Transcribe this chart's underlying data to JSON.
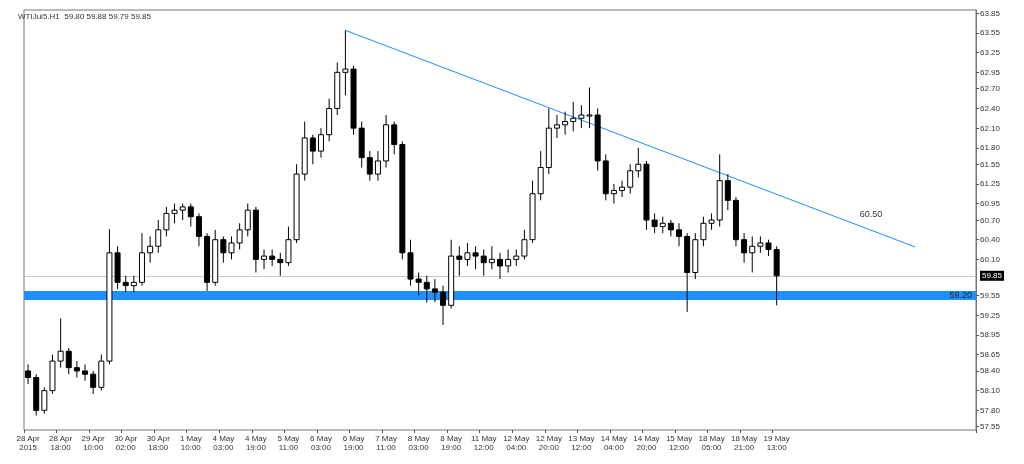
{
  "chart_data": {
    "type": "candlestick",
    "title": "WTIJul5.H1  59.80 59.88 59.79 59.85",
    "color": "#000000",
    "categories": [
      "28 Apr 2015",
      null,
      null,
      null,
      "28 Apr 18:00",
      null,
      null,
      null,
      "29 Apr 10:00",
      null,
      null,
      null,
      "30 Apr 02:00",
      null,
      null,
      null,
      "30 Apr 18:00",
      null,
      null,
      null,
      "1 May 10:00",
      null,
      null,
      null,
      "4 May 03:00",
      null,
      null,
      null,
      "4 May 19:00",
      null,
      null,
      null,
      "5 May 11:00",
      null,
      null,
      null,
      "6 May 03:00",
      null,
      null,
      null,
      "6 May 19:00",
      null,
      null,
      null,
      "7 May 11:00",
      null,
      null,
      null,
      "8 May 03:00",
      null,
      null,
      null,
      "8 May 19:00",
      null,
      null,
      null,
      "11 May 12:00",
      null,
      null,
      null,
      "12 May 04:00",
      null,
      null,
      null,
      "12 May 20:00",
      null,
      null,
      null,
      "13 May 12:00",
      null,
      null,
      null,
      "14 May 04:00",
      null,
      null,
      null,
      "14 May 20:00",
      null,
      null,
      null,
      "15 May 12:00",
      null,
      null,
      null,
      "18 May 05:00",
      null,
      null,
      null,
      "18 May 21:00",
      null,
      null,
      null,
      "19 May 13:00",
      null,
      null,
      null,
      null,
      null,
      null,
      null,
      null,
      null,
      null,
      null,
      null,
      null,
      null,
      null,
      null,
      null,
      null,
      null,
      null,
      null,
      null,
      null,
      null
    ],
    "ohlc": [
      [
        58.4,
        58.5,
        58.2,
        58.3
      ],
      [
        58.3,
        58.35,
        57.72,
        57.8
      ],
      [
        57.8,
        58.15,
        57.75,
        58.1
      ],
      [
        58.1,
        58.65,
        58.05,
        58.55
      ],
      [
        58.55,
        59.2,
        58.45,
        58.7
      ],
      [
        58.7,
        58.75,
        58.35,
        58.45
      ],
      [
        58.45,
        58.55,
        58.3,
        58.4
      ],
      [
        58.4,
        58.5,
        58.25,
        58.35
      ],
      [
        58.35,
        58.4,
        58.05,
        58.15
      ],
      [
        58.15,
        58.65,
        58.1,
        58.55
      ],
      [
        58.55,
        60.56,
        58.5,
        60.2
      ],
      [
        60.2,
        60.3,
        59.65,
        59.75
      ],
      [
        59.75,
        59.85,
        59.6,
        59.7
      ],
      [
        59.7,
        59.85,
        59.6,
        59.75
      ],
      [
        59.75,
        60.5,
        59.7,
        60.2
      ],
      [
        60.2,
        60.45,
        60.05,
        60.3
      ],
      [
        60.3,
        60.7,
        60.2,
        60.55
      ],
      [
        60.55,
        60.9,
        60.45,
        60.8
      ],
      [
        60.8,
        60.95,
        60.65,
        60.85
      ],
      [
        60.85,
        60.95,
        60.7,
        60.9
      ],
      [
        60.9,
        60.95,
        60.6,
        60.75
      ],
      [
        60.75,
        60.8,
        60.3,
        60.45
      ],
      [
        60.45,
        60.5,
        59.62,
        59.75
      ],
      [
        59.75,
        60.55,
        59.7,
        60.4
      ],
      [
        60.4,
        60.45,
        60.05,
        60.2
      ],
      [
        60.2,
        60.45,
        60.1,
        60.35
      ],
      [
        60.35,
        60.65,
        60.25,
        60.55
      ],
      [
        60.55,
        60.95,
        60.45,
        60.85
      ],
      [
        60.85,
        60.9,
        59.9,
        60.1
      ],
      [
        60.1,
        60.25,
        59.95,
        60.15
      ],
      [
        60.15,
        60.25,
        60.0,
        60.1
      ],
      [
        60.1,
        60.2,
        59.85,
        60.05
      ],
      [
        60.05,
        60.6,
        60.0,
        60.4
      ],
      [
        60.4,
        61.55,
        60.35,
        61.4
      ],
      [
        61.4,
        62.2,
        61.3,
        61.95
      ],
      [
        61.95,
        62.0,
        61.55,
        61.75
      ],
      [
        61.75,
        62.1,
        61.65,
        62.0
      ],
      [
        62.0,
        62.55,
        61.9,
        62.4
      ],
      [
        62.4,
        63.1,
        62.3,
        62.95
      ],
      [
        62.95,
        63.59,
        62.6,
        63.0
      ],
      [
        63.0,
        63.05,
        62.0,
        62.1
      ],
      [
        62.1,
        62.2,
        61.5,
        61.65
      ],
      [
        61.65,
        61.75,
        61.3,
        61.4
      ],
      [
        61.4,
        61.75,
        61.3,
        61.6
      ],
      [
        61.6,
        62.3,
        61.5,
        62.15
      ],
      [
        62.15,
        62.2,
        61.7,
        61.85
      ],
      [
        61.85,
        61.9,
        60.1,
        60.2
      ],
      [
        60.2,
        60.4,
        59.7,
        59.8
      ],
      [
        59.8,
        59.9,
        59.55,
        59.75
      ],
      [
        59.75,
        59.85,
        59.44,
        59.65
      ],
      [
        59.65,
        59.8,
        59.45,
        59.6
      ],
      [
        59.6,
        59.7,
        59.1,
        59.4
      ],
      [
        59.4,
        60.4,
        59.35,
        60.15
      ],
      [
        60.15,
        60.3,
        59.85,
        60.1
      ],
      [
        60.1,
        60.35,
        60.0,
        60.2
      ],
      [
        60.2,
        60.3,
        59.95,
        60.15
      ],
      [
        60.15,
        60.25,
        59.85,
        60.05
      ],
      [
        60.05,
        60.3,
        59.95,
        60.1
      ],
      [
        60.1,
        60.2,
        59.8,
        60.0
      ],
      [
        60.0,
        60.25,
        59.9,
        60.1
      ],
      [
        60.1,
        60.25,
        60.0,
        60.15
      ],
      [
        60.15,
        60.55,
        60.1,
        60.4
      ],
      [
        60.4,
        61.3,
        60.35,
        61.1
      ],
      [
        61.1,
        61.75,
        61.0,
        61.5
      ],
      [
        61.5,
        62.4,
        61.4,
        62.1
      ],
      [
        62.1,
        62.3,
        61.95,
        62.15
      ],
      [
        62.15,
        62.35,
        62.0,
        62.2
      ],
      [
        62.2,
        62.5,
        62.05,
        62.25
      ],
      [
        62.25,
        62.45,
        62.1,
        62.3
      ],
      [
        62.3,
        62.72,
        62.1,
        62.3
      ],
      [
        62.3,
        62.4,
        61.45,
        61.6
      ],
      [
        61.6,
        61.7,
        61.0,
        61.1
      ],
      [
        61.1,
        61.25,
        60.95,
        61.15
      ],
      [
        61.15,
        61.3,
        61.05,
        61.2
      ],
      [
        61.2,
        61.55,
        61.1,
        61.45
      ],
      [
        61.45,
        61.8,
        61.35,
        61.55
      ],
      [
        61.55,
        61.6,
        60.55,
        60.7
      ],
      [
        60.7,
        60.8,
        60.5,
        60.6
      ],
      [
        60.6,
        60.75,
        60.5,
        60.65
      ],
      [
        60.65,
        60.7,
        60.45,
        60.55
      ],
      [
        60.55,
        60.65,
        60.3,
        60.45
      ],
      [
        60.45,
        60.5,
        59.3,
        59.9
      ],
      [
        59.9,
        60.5,
        59.8,
        60.4
      ],
      [
        60.4,
        60.75,
        60.3,
        60.65
      ],
      [
        60.65,
        60.8,
        60.55,
        60.7
      ],
      [
        60.7,
        61.7,
        60.6,
        61.3
      ],
      [
        61.3,
        61.4,
        60.85,
        61.0
      ],
      [
        61.0,
        61.05,
        60.3,
        60.4
      ],
      [
        60.4,
        60.5,
        60.05,
        60.2
      ],
      [
        60.2,
        60.45,
        59.9,
        60.3
      ],
      [
        60.3,
        60.45,
        60.2,
        60.35
      ],
      [
        60.35,
        60.4,
        60.15,
        60.25
      ],
      [
        60.25,
        60.3,
        59.4,
        59.85
      ],
      null,
      null,
      null,
      null,
      null,
      null,
      null,
      null,
      null,
      null,
      null,
      null,
      null,
      null,
      null,
      null,
      null,
      null,
      null,
      null,
      null,
      null,
      null,
      null
    ],
    "series": [
      {
        "type": "line",
        "color": "#1e90ff",
        "values": [
          null,
          null,
          null,
          null,
          null,
          null,
          null,
          null,
          null,
          null,
          null,
          null,
          null,
          null,
          null,
          null,
          null,
          null,
          null,
          null,
          null,
          null,
          null,
          null,
          null,
          null,
          null,
          null,
          null,
          null,
          null,
          null,
          null,
          null,
          null,
          null,
          null,
          null,
          null,
          63.59,
          null,
          null,
          null,
          null,
          null,
          null,
          null,
          null,
          null,
          null,
          null,
          null,
          null,
          null,
          null,
          null,
          null,
          null,
          null,
          null,
          null,
          null,
          null,
          null,
          null,
          null,
          null,
          null,
          null,
          null,
          null,
          null,
          null,
          null,
          null,
          null,
          null,
          null,
          null,
          null,
          null,
          null,
          null,
          null,
          null,
          null,
          null,
          null,
          null,
          null,
          null,
          null,
          null,
          null,
          null,
          null,
          null,
          null,
          null,
          null,
          null,
          null,
          null,
          null,
          null,
          null,
          null,
          null,
          null,
          60.29,
          null,
          null,
          null,
          null,
          null,
          null,
          null
        ]
      }
    ],
    "ylim": [
      57.5,
      63.9
    ],
    "yticks": [
      63.85,
      63.55,
      63.25,
      62.95,
      {
        "value": 62.7,
        "label": "62.70"
      },
      {
        "value": 62.4,
        "label": "62.40"
      },
      {
        "value": 62.1,
        "label": "62.10"
      },
      {
        "value": 61.8,
        "label": "61.80"
      },
      61.55,
      61.25,
      60.95,
      {
        "value": 60.7,
        "label": "60.70"
      },
      {
        "value": 60.4,
        "label": "60.40"
      },
      {
        "value": 60.1,
        "label": "60.10"
      },
      59.55,
      59.25,
      58.95,
      58.65,
      {
        "value": 58.4,
        "label": "58.40"
      },
      {
        "value": 58.1,
        "label": "58.10"
      },
      {
        "value": 57.8,
        "label": "57.80"
      },
      57.55
    ],
    "bands": [
      {
        "axis": "y",
        "from": 59.48,
        "to": 59.62,
        "label": "59.20",
        "color": "#1e90ff"
      }
    ],
    "ref_lines": [
      {
        "axis": "y",
        "value": 59.85,
        "label": "59.85",
        "color": "#c8c8c8"
      }
    ],
    "annotations": [
      "60.50"
    ],
    "grid": false
  }
}
